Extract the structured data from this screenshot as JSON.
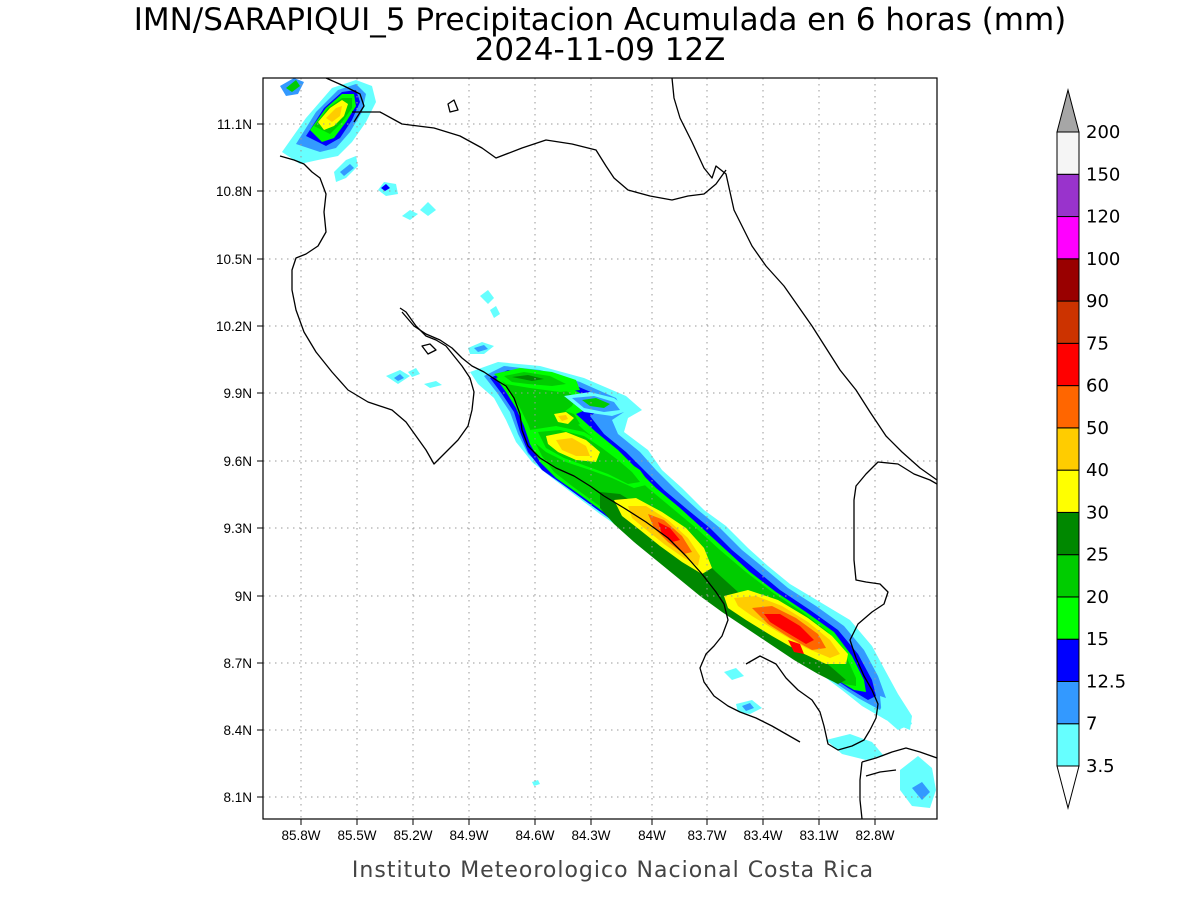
{
  "header": {
    "title_line1": "IMN/SARAPIQUI_5 Precipitacion Acumulada en 6 horas (mm)",
    "title_line2": "2024-11-09 12Z"
  },
  "footer": {
    "credit": "Instituto Meteorologico Nacional Costa Rica"
  },
  "map": {
    "lat_ticks": [
      "11.1N",
      "10.8N",
      "10.5N",
      "10.2N",
      "9.9N",
      "9.6N",
      "9.3N",
      "9N",
      "8.7N",
      "8.4N",
      "8.1N"
    ],
    "lon_ticks": [
      "85.8W",
      "85.5W",
      "85.2W",
      "84.9W",
      "84.6W",
      "84.3W",
      "84W",
      "83.7W",
      "83.4W",
      "83.1W",
      "82.8W"
    ],
    "grid": "dotted"
  },
  "colorbar": {
    "labels": [
      "3.5",
      "7",
      "12.5",
      "15",
      "20",
      "25",
      "30",
      "40",
      "50",
      "60",
      "75",
      "90",
      "100",
      "120",
      "150",
      "200"
    ],
    "colors": [
      "#66ffff",
      "#3399ff",
      "#0000ff",
      "#00ff00",
      "#00cc00",
      "#008800",
      "#ffff00",
      "#ffcc00",
      "#ff6600",
      "#ff0000",
      "#cc3300",
      "#990000",
      "#ff00ff",
      "#9933cc",
      "#f5f5f5",
      "#a6a6a6"
    ],
    "under_color": "#ffffff",
    "over_color": "#a6a6a6"
  }
}
